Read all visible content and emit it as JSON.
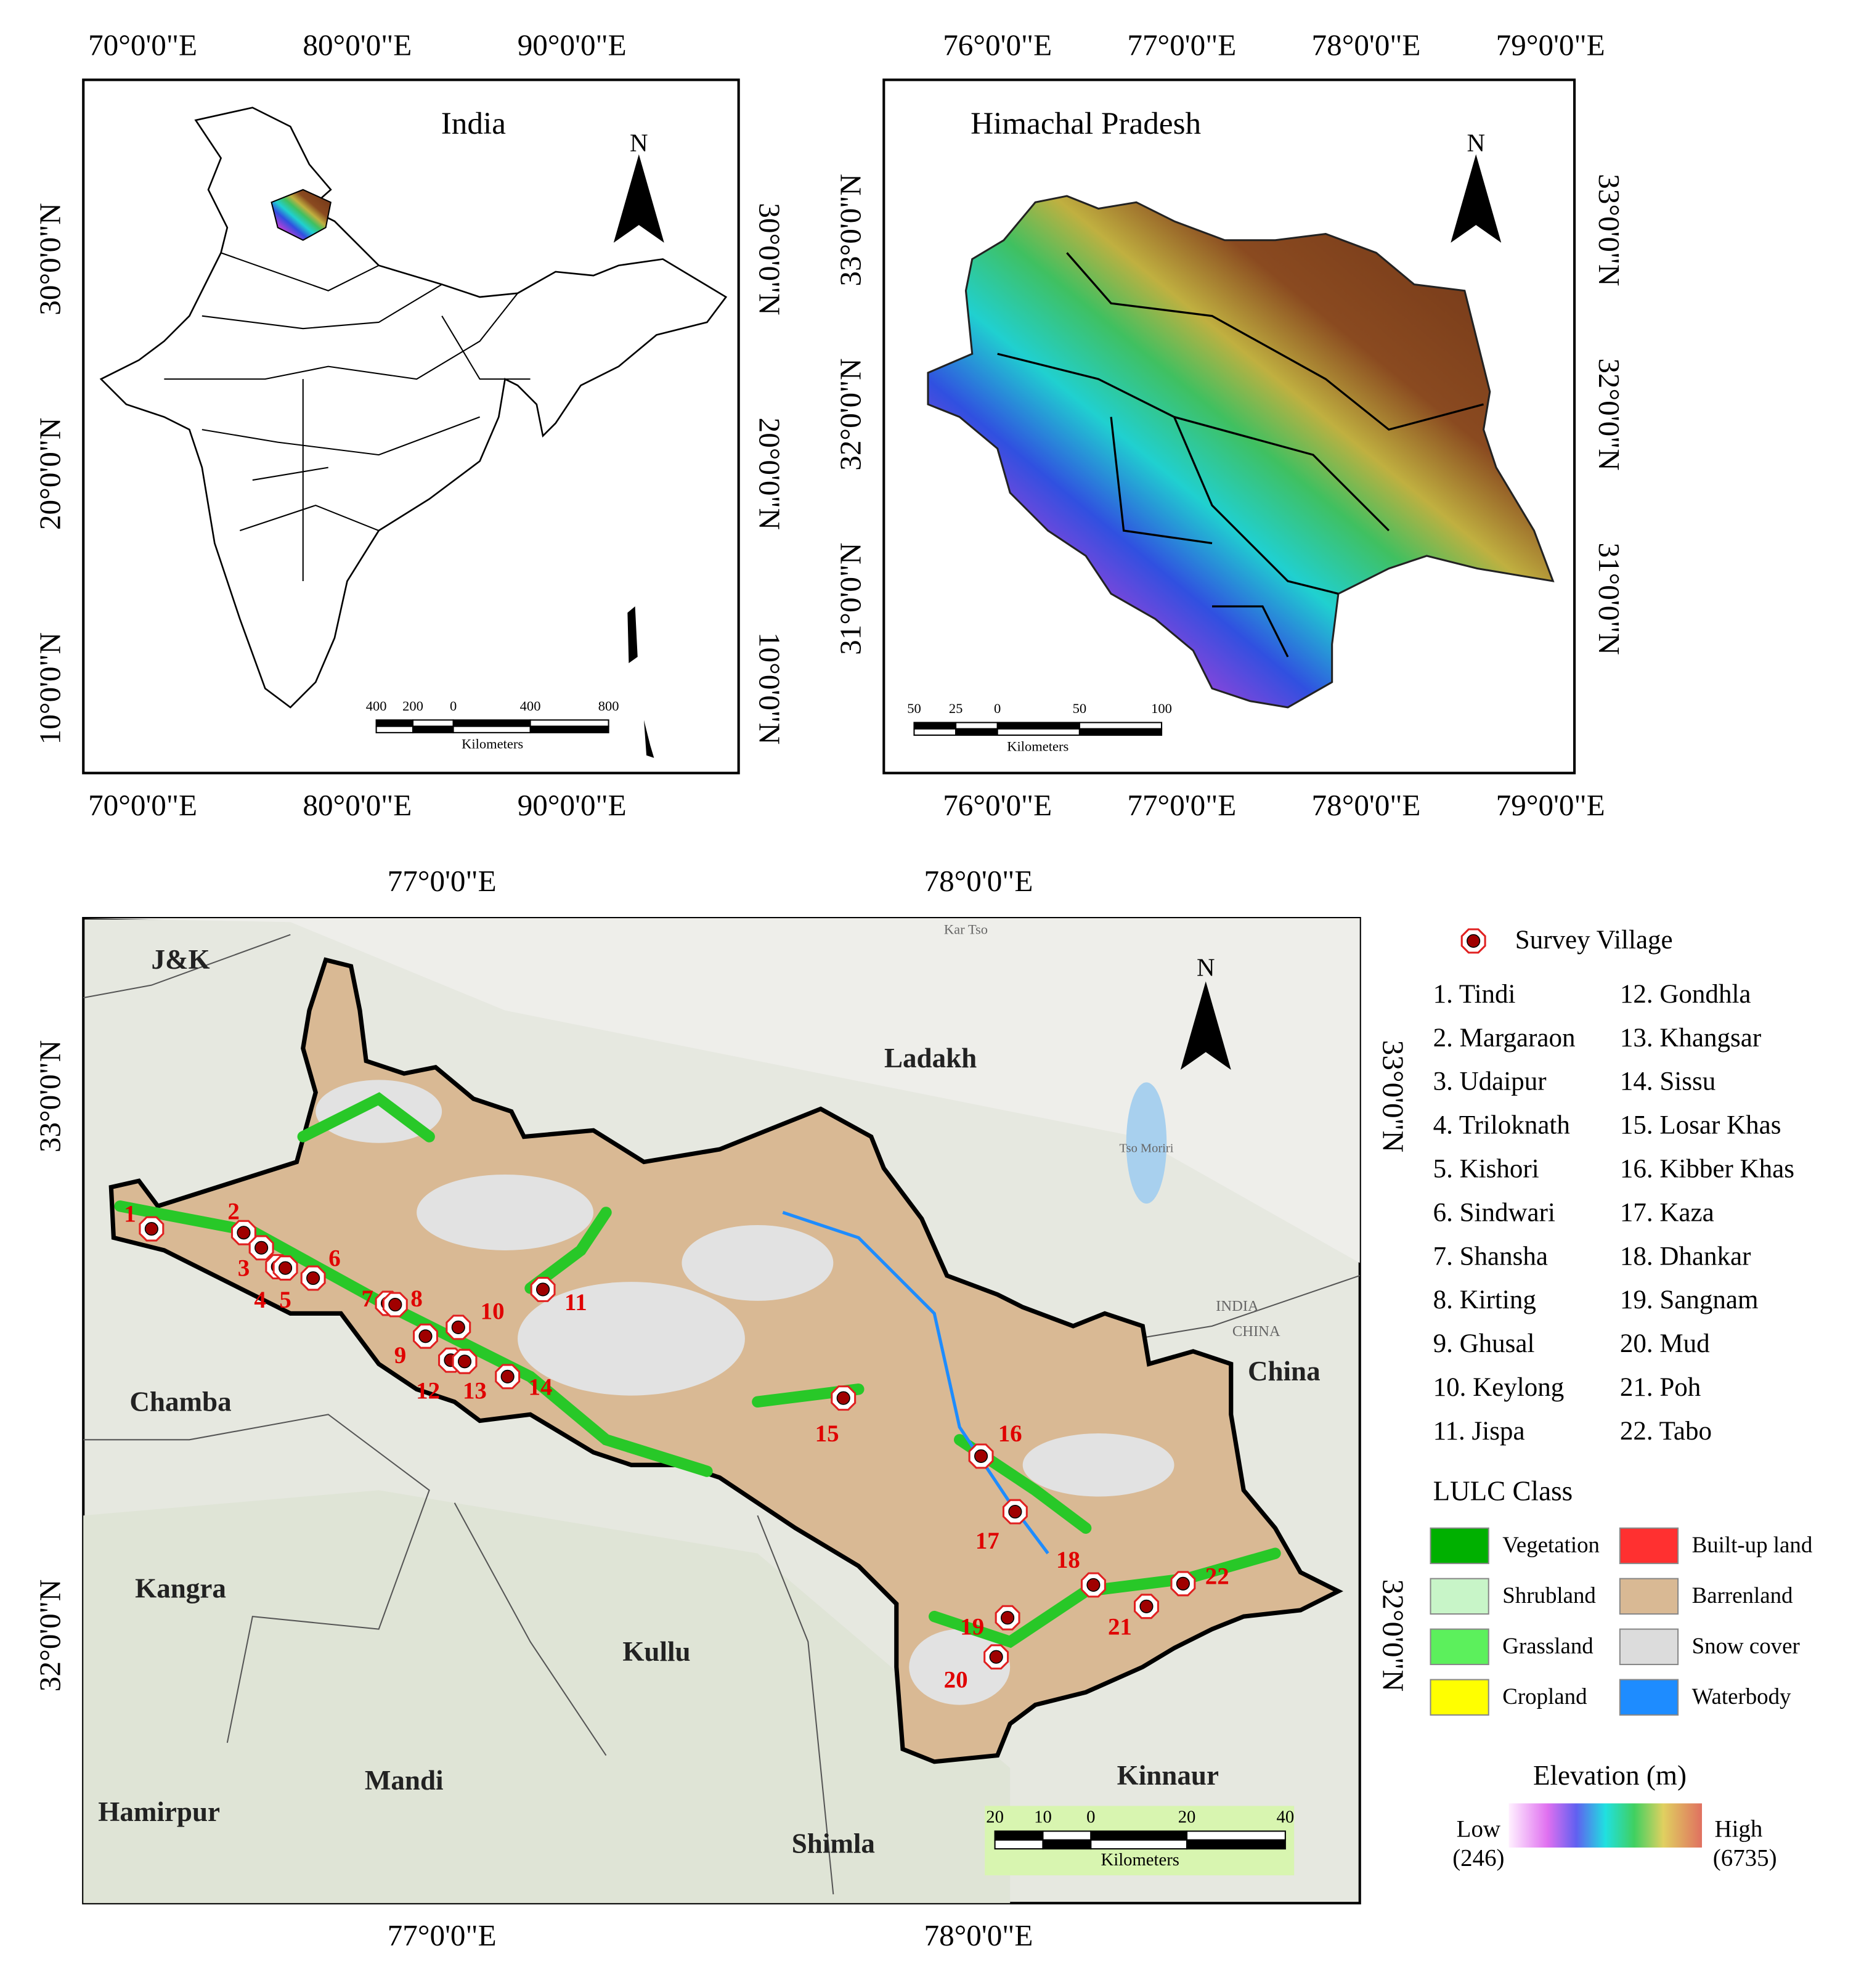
{
  "panels": {
    "india": {
      "title": "India",
      "north": "N",
      "x_labels": [
        "70°0'0\"E",
        "80°0'0\"E",
        "90°0'0\"E"
      ],
      "y_labels": [
        "30°0'0\"N",
        "20°0'0\"N",
        "10°0'0\"N"
      ],
      "scale_labels": [
        "400",
        "200",
        "0",
        "400",
        "800"
      ],
      "scale_unit": "Kilometers"
    },
    "himachal": {
      "title": "Himachal Pradesh",
      "north": "N",
      "x_labels": [
        "76°0'0\"E",
        "77°0'0\"E",
        "78°0'0\"E",
        "79°0'0\"E"
      ],
      "y_labels": [
        "33°0'0\"N",
        "32°0'0\"N",
        "31°0'0\"N"
      ],
      "scale_labels": [
        "50",
        "25",
        "0",
        "50",
        "100"
      ],
      "scale_unit": "Kilometers"
    },
    "study_area": {
      "north": "N",
      "x_labels": [
        "77°0'0\"E",
        "78°0'0\"E"
      ],
      "y_labels": [
        "33°0'0\"N",
        "32°0'0\"N"
      ],
      "place_names": [
        "J&K",
        "Ladakh",
        "Chamba",
        "Kangra",
        "Kullu",
        "Mandi",
        "Hamirpur",
        "Shimla",
        "Kinnaur",
        "China"
      ],
      "basemap_labels": [
        "Kar Tso",
        "Tso Moriri",
        "INDIA",
        "CHINA"
      ],
      "village_markers": [
        "1",
        "2",
        "3",
        "4",
        "5",
        "6",
        "7",
        "8",
        "9",
        "10",
        "11",
        "12",
        "13",
        "14",
        "15",
        "16",
        "17",
        "18",
        "19",
        "20",
        "21",
        "22"
      ],
      "scale_labels": [
        "20",
        "10",
        "0",
        "20",
        "40"
      ],
      "scale_unit": "Kilometers"
    }
  },
  "legend": {
    "survey_village": "Survey Village",
    "villages": [
      "1. Tindi",
      "2. Margaraon",
      "3. Udaipur",
      "4. Triloknath",
      "5. Kishori",
      "6. Sindwari",
      "7. Shansha",
      "8. Kirting",
      "9. Ghusal",
      "10. Keylong",
      "11. Jispa",
      "12. Gondhla",
      "13. Khangsar",
      "14. Sissu",
      "15. Losar Khas",
      "16. Kibber Khas",
      "17. Kaza",
      "18. Dhankar",
      "19. Sangnam",
      "20. Mud",
      "21. Poh",
      "22. Tabo"
    ],
    "lulc_title": "LULC Class",
    "lulc_classes": [
      {
        "name": "Vegetation",
        "color": "#00b000"
      },
      {
        "name": "Shrubland",
        "color": "#c8f5c8"
      },
      {
        "name": "Grassland",
        "color": "#5cf05c"
      },
      {
        "name": "Cropland",
        "color": "#ffff00"
      },
      {
        "name": "Built-up land",
        "color": "#ff3030"
      },
      {
        "name": "Barrenland",
        "color": "#d9b994"
      },
      {
        "name": "Snow cover",
        "color": "#dcdcdc"
      },
      {
        "name": "Waterbody",
        "color": "#1e8cff"
      }
    ],
    "elevation_title": "Elevation (m)",
    "low": "Low",
    "low_value": "(246)",
    "high": "High",
    "high_value": "(6735)"
  }
}
